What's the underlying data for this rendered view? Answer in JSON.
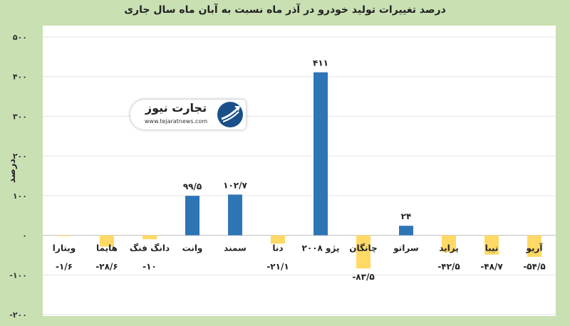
{
  "chart_data": {
    "type": "bar",
    "title": "درصد تغییرات تولید خودرو در آذر ماه نسبت به آبان ماه سال جاری",
    "xlabel": "",
    "ylabel": "درصد",
    "ylim": [
      -200,
      500
    ],
    "y_ticks": [
      {
        "value": 500,
        "label": "۵۰۰"
      },
      {
        "value": 400,
        "label": "۴۰۰"
      },
      {
        "value": 300,
        "label": "۳۰۰"
      },
      {
        "value": 200,
        "label": "۲۰۰"
      },
      {
        "value": 100,
        "label": "۱۰۰"
      },
      {
        "value": 0,
        "label": "۰"
      },
      {
        "value": -100,
        "label": "-۱۰۰"
      },
      {
        "value": -200,
        "label": "-۲۰۰"
      }
    ],
    "grid": true,
    "legend": "none",
    "positive_color": "#2e75b6",
    "negative_color": "#ffd966",
    "categories": [
      "ویتارا",
      "هایما",
      "دانگ فنگ",
      "وانت",
      "سمند",
      "دنا",
      "پژو ۲۰۰۸",
      "چانگان",
      "سراتو",
      "پراید",
      "تیبا",
      "آریو"
    ],
    "values": [
      -1.6,
      -28.6,
      -10,
      99.5,
      102.7,
      -21.1,
      411,
      -83.5,
      24,
      -42.5,
      -48.7,
      -54.5
    ],
    "value_labels": [
      "-۱/۶",
      "-۲۸/۶",
      "-۱۰",
      "۹۹/۵",
      "۱۰۲/۷",
      "-۲۱/۱",
      "۴۱۱",
      "-۸۳/۵",
      "۲۴",
      "-۴۲/۵",
      "-۴۸/۷",
      "-۵۴/۵"
    ]
  },
  "logo": {
    "wordmark": "تجارت نیوز",
    "url": "www.tejaratnews.com"
  }
}
